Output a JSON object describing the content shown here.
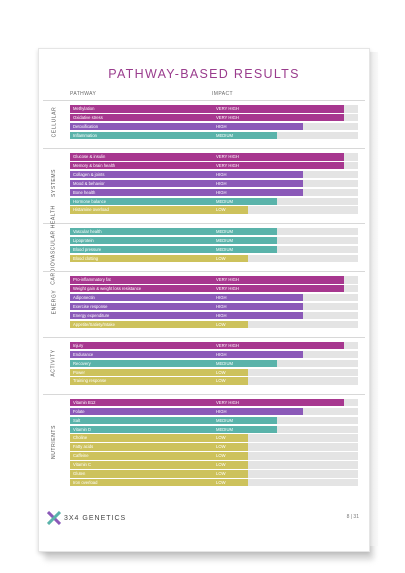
{
  "title": "PATHWAY-BASED RESULTS",
  "headers": {
    "pathway": "PATHWAY",
    "impact": "IMPACT"
  },
  "levels": {
    "VERY HIGH": {
      "color": "#a7378f",
      "fraction": 0.9
    },
    "HIGH": {
      "color": "#8b59b8",
      "fraction": 0.62
    },
    "MEDIUM": {
      "color": "#5ab3aa",
      "fraction": 0.44
    },
    "LOW": {
      "color": "#cdc25c",
      "fraction": 0.24
    }
  },
  "sections": [
    {
      "name": "CELLULAR",
      "rows": [
        {
          "label": "Methylation",
          "impact": "VERY HIGH"
        },
        {
          "label": "Oxidative stress",
          "impact": "VERY HIGH"
        },
        {
          "label": "Detoxification",
          "impact": "HIGH"
        },
        {
          "label": "Inflammation",
          "impact": "MEDIUM"
        }
      ]
    },
    {
      "name": "SYSTEMS",
      "rows": [
        {
          "label": "Glucose & insulin",
          "impact": "VERY HIGH"
        },
        {
          "label": "Memory & brain health",
          "impact": "VERY HIGH"
        },
        {
          "label": "Collagen & joints",
          "impact": "HIGH"
        },
        {
          "label": "Mood & behavior",
          "impact": "HIGH"
        },
        {
          "label": "Bone health",
          "impact": "HIGH"
        },
        {
          "label": "Hormone balance",
          "impact": "MEDIUM"
        },
        {
          "label": "Histamine overload",
          "impact": "LOW"
        }
      ]
    },
    {
      "name": "CARDIOVASCULAR HEALTH",
      "rows": [
        {
          "label": "Vascular health",
          "impact": "MEDIUM"
        },
        {
          "label": "Lipoprotein",
          "impact": "MEDIUM"
        },
        {
          "label": "Blood pressure",
          "impact": "MEDIUM"
        },
        {
          "label": "Blood clotting",
          "impact": "LOW"
        }
      ]
    },
    {
      "name": "ENERGY",
      "rows": [
        {
          "label": "Pro-inflammatory fat",
          "impact": "VERY HIGH"
        },
        {
          "label": "Weight gain & weight loss resistance",
          "impact": "VERY HIGH"
        },
        {
          "label": "Adiponectin",
          "impact": "HIGH"
        },
        {
          "label": "Exercise response",
          "impact": "HIGH"
        },
        {
          "label": "Energy expenditure",
          "impact": "HIGH"
        },
        {
          "label": "Appetite/Satiety/Intake",
          "impact": "LOW"
        }
      ]
    },
    {
      "name": "ACTIVITY",
      "rows": [
        {
          "label": "Injury",
          "impact": "VERY HIGH"
        },
        {
          "label": "Endurance",
          "impact": "HIGH"
        },
        {
          "label": "Recovery",
          "impact": "MEDIUM"
        },
        {
          "label": "Power",
          "impact": "LOW"
        },
        {
          "label": "Training response",
          "impact": "LOW"
        }
      ]
    },
    {
      "name": "NUTRIENTS",
      "rows": [
        {
          "label": "Vitamin B12",
          "impact": "VERY HIGH"
        },
        {
          "label": "Folate",
          "impact": "HIGH"
        },
        {
          "label": "Salt",
          "impact": "MEDIUM"
        },
        {
          "label": "Vitamin D",
          "impact": "MEDIUM"
        },
        {
          "label": "Choline",
          "impact": "LOW"
        },
        {
          "label": "Fatty acids",
          "impact": "LOW"
        },
        {
          "label": "Caffeine",
          "impact": "LOW"
        },
        {
          "label": "Vitamin C",
          "impact": "LOW"
        },
        {
          "label": "Gluten",
          "impact": "LOW"
        },
        {
          "label": "Iron overload",
          "impact": "LOW"
        }
      ]
    }
  ],
  "brand": "3X4 GENETICS",
  "page_number": "8 | 31"
}
